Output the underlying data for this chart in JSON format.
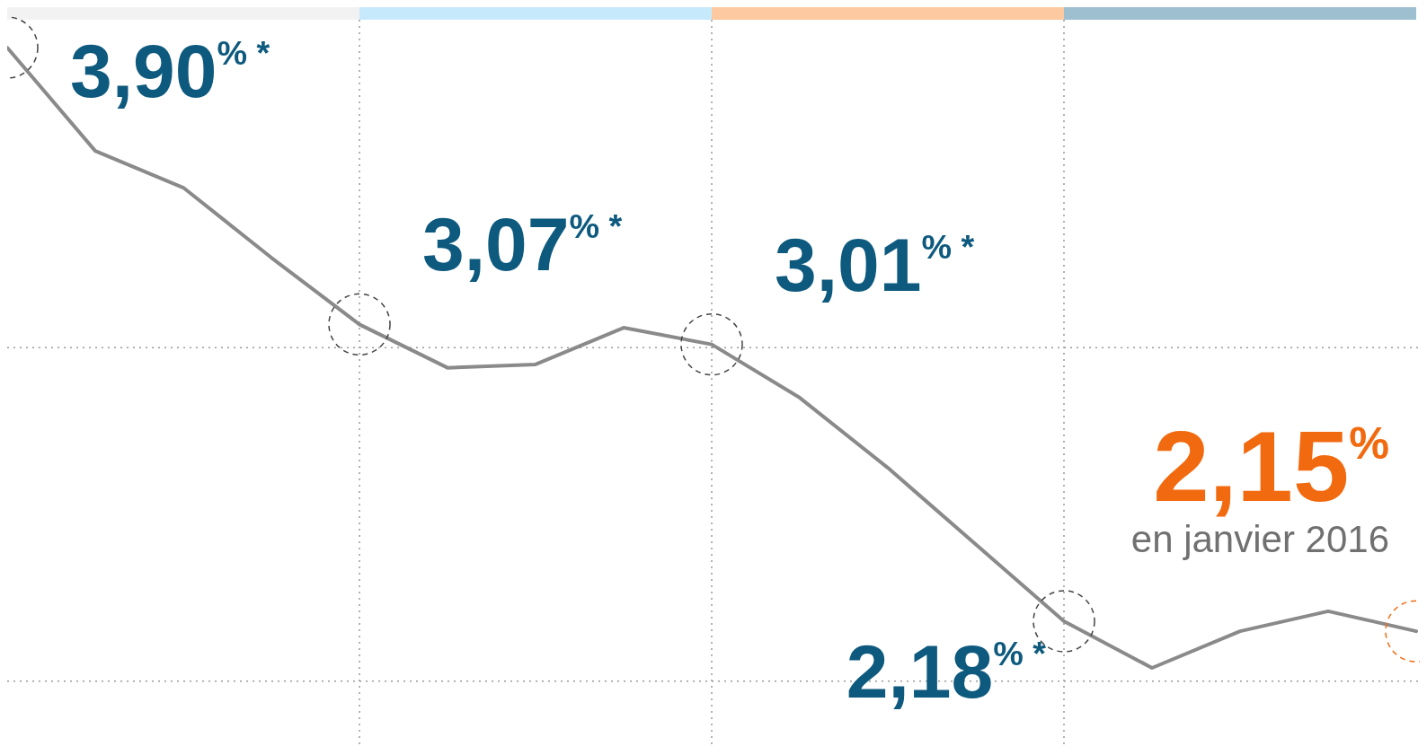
{
  "chart_data": {
    "type": "line",
    "categories": [
      null,
      null,
      null,
      null,
      null,
      null,
      null,
      null,
      null,
      null,
      null,
      null,
      null,
      null,
      null,
      null,
      null
    ],
    "grid": true,
    "series": [
      {
        "color": "#8a8a8a",
        "values": [
          3.9,
          3.59,
          3.48,
          3.27,
          3.07,
          2.94,
          2.95,
          3.06,
          3.01,
          2.85,
          2.64,
          2.41,
          2.18,
          2.04,
          2.15,
          2.21,
          2.15
        ],
        "value_labels": [
          "3,90$^{% *}$",
          null,
          null,
          null,
          "3,07$^{% *}$",
          null,
          null,
          null,
          "3,01$^{% *}$",
          null,
          null,
          null,
          "2,18$^{% *}$",
          null,
          null,
          null,
          null
        ]
      }
    ],
    "annotations": [
      "2,15$^{%}$",
      "en janvier 2016"
    ]
  }
}
